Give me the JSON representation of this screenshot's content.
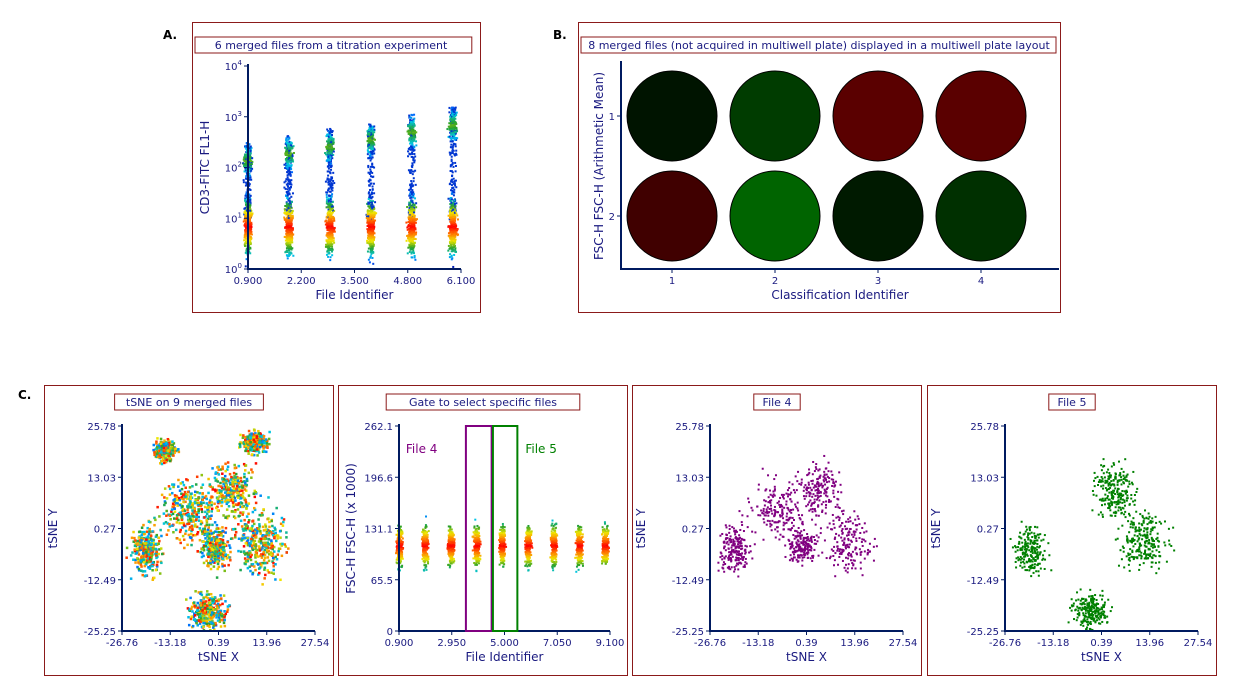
{
  "labels": {
    "a": "A.",
    "b": "B.",
    "c": "C."
  },
  "chart_data": [
    {
      "id": "A",
      "type": "scatter",
      "title": "6 merged files from a titration experiment",
      "xlabel": "File Identifier",
      "ylabel": "CD3-FITC FL1-H",
      "xlim": [
        0.9,
        6.1
      ],
      "xticks": [
        "0.900",
        "2.200",
        "3.500",
        "4.800",
        "6.100"
      ],
      "yscale": "log",
      "ylim": [
        1,
        10000
      ],
      "yticks": [
        "10^0",
        "10^1",
        "10^2",
        "10^3",
        "10^4"
      ],
      "columns": [
        1,
        2,
        3,
        4,
        5,
        6
      ],
      "density": "colormap"
    },
    {
      "id": "B",
      "type": "heatmap",
      "title": "8 merged files (not acquired in multiwell plate) displayed in a multiwell plate layout",
      "xlabel": "Classification Identifier",
      "ylabel": "FSC-H FSC-H (Arithmetic Mean)",
      "xticks": [
        "1",
        "2",
        "3",
        "4"
      ],
      "yticks": [
        "1",
        "2"
      ],
      "wells": [
        [
          "#001400",
          "#003c00",
          "#5a0000",
          "#5a0000"
        ],
        [
          "#400000",
          "#006400",
          "#001a00",
          "#003000"
        ]
      ]
    },
    {
      "id": "C1",
      "type": "scatter",
      "title": "tSNE on 9 merged files",
      "xlabel": "tSNE X",
      "ylabel": "tSNE Y",
      "xlim": [
        -26.76,
        27.54
      ],
      "ylim": [
        -25.25,
        25.78
      ],
      "xticks": [
        "-26.76",
        "-13.18",
        "0.39",
        "13.96",
        "27.54"
      ],
      "yticks": [
        "-25.25",
        "-12.49",
        "0.27",
        "13.03",
        "25.78"
      ],
      "density": "colormap"
    },
    {
      "id": "C2",
      "type": "scatter",
      "title": "Gate to select specific files",
      "xlabel": "File Identifier",
      "ylabel": "FSC-H FSC-H (x 1000)",
      "xlim": [
        0.9,
        9.1
      ],
      "ylim": [
        0,
        262.1
      ],
      "xticks": [
        "0.900",
        "2.950",
        "5.000",
        "7.050",
        "9.100"
      ],
      "yticks": [
        "0",
        "65.5",
        "131.1",
        "196.6",
        "262.1"
      ],
      "columns": [
        1,
        2,
        3,
        4,
        5,
        6,
        7,
        8,
        9
      ],
      "gates": [
        {
          "name": "File 4",
          "x": [
            3.5,
            4.5
          ],
          "color": "#800080"
        },
        {
          "name": "File 5",
          "x": [
            4.55,
            5.5
          ],
          "color": "#008000"
        }
      ]
    },
    {
      "id": "C3",
      "type": "scatter",
      "title": "File 4",
      "xlabel": "tSNE X",
      "ylabel": "tSNE Y",
      "xlim": [
        -26.76,
        27.54
      ],
      "ylim": [
        -25.25,
        25.78
      ],
      "xticks": [
        "-26.76",
        "-13.18",
        "0.39",
        "13.96",
        "27.54"
      ],
      "yticks": [
        "-25.25",
        "-12.49",
        "0.27",
        "13.03",
        "25.78"
      ],
      "color": "#800080"
    },
    {
      "id": "C4",
      "type": "scatter",
      "title": "File 5",
      "xlabel": "tSNE X",
      "ylabel": "tSNE Y",
      "xlim": [
        -26.76,
        27.54
      ],
      "ylim": [
        -25.25,
        25.78
      ],
      "xticks": [
        "-26.76",
        "-13.18",
        "0.39",
        "13.96",
        "27.54"
      ],
      "yticks": [
        "-25.25",
        "-12.49",
        "0.27",
        "13.03",
        "25.78"
      ],
      "color": "#008000"
    }
  ]
}
